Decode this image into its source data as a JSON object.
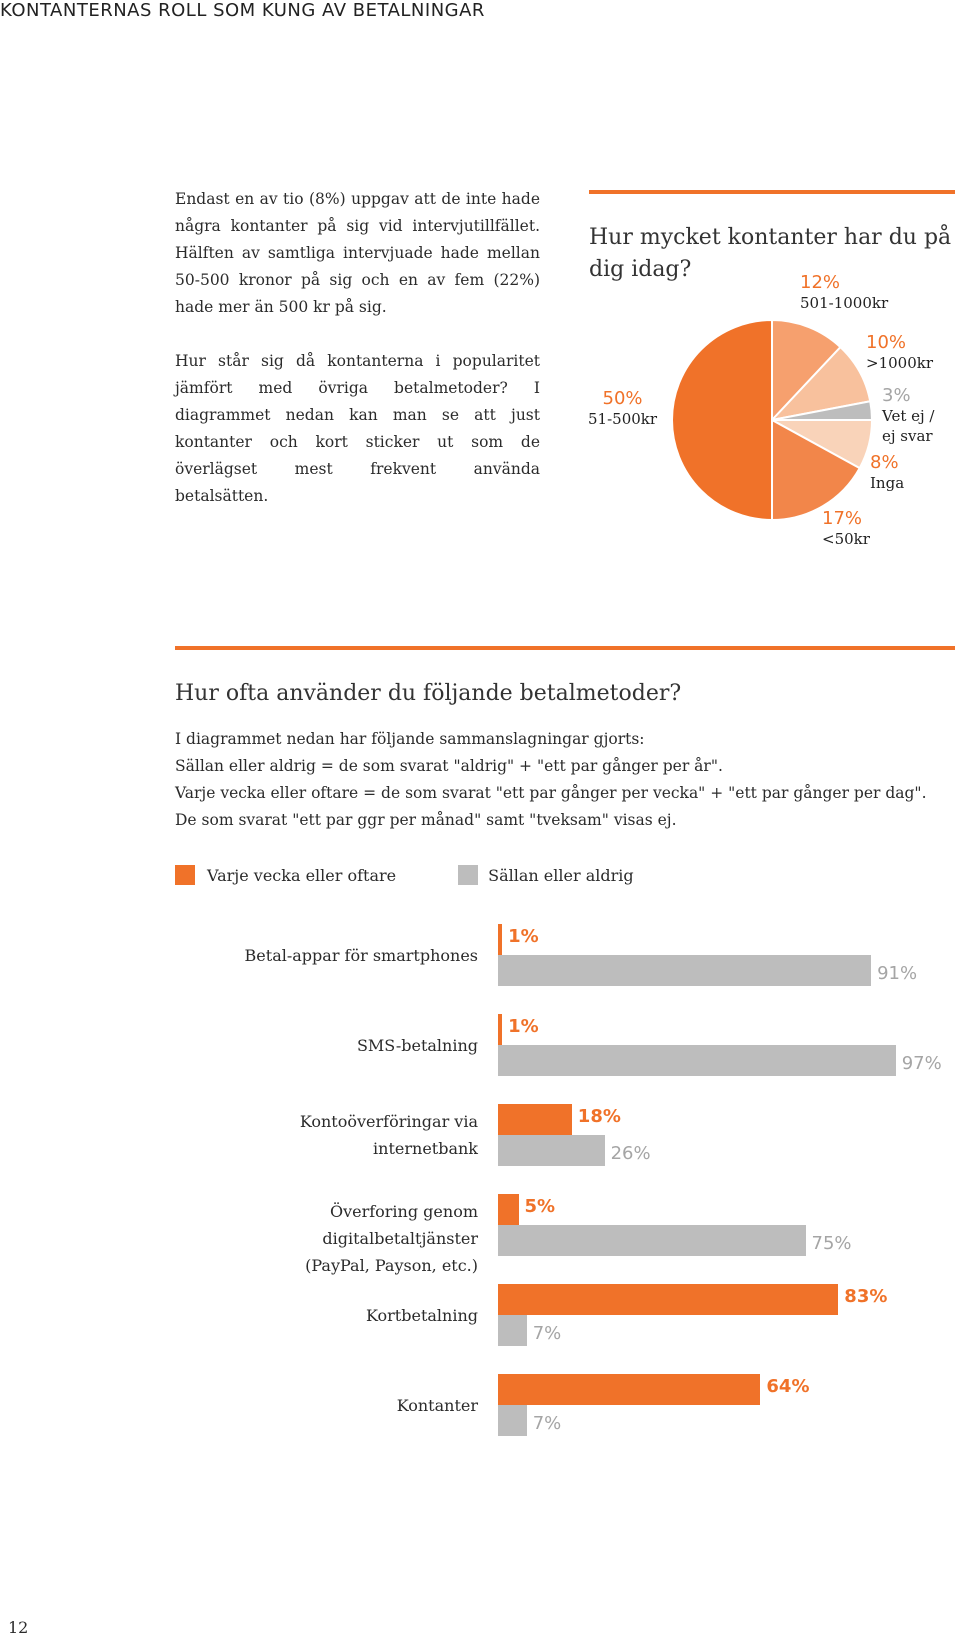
{
  "header": {
    "title": "KONTANTERNAS ROLL SOM KUNG AV BETALNINGAR"
  },
  "intro": {
    "p1": "Endast en av tio (8%) uppgav att de inte hade några kontanter på sig vid intervjutillfället. Hälften av samtliga intervjuade hade mellan 50-500 kronor på sig och en av fem (22%) hade mer än 500 kr på sig.",
    "p2": "Hur står sig då kontanterna i popularitet jämfört med övriga betalmetoder? I diagrammet nedan kan man se att just kontanter och kort sticker ut som de överlägset mest frekvent använda betalsätten."
  },
  "pie_section": {
    "title_line1": "Hur mycket kontanter har du på",
    "title_line2": "dig idag?"
  },
  "bar_section": {
    "title": "Hur ofta använder du följande betalmetoder?",
    "desc1": "I diagrammet nedan har följande sammanslagningar gjorts:",
    "desc2": "Sällan eller aldrig = de som svarat \"aldrig\" + \"ett par gånger per år\".",
    "desc3": "Varje vecka eller oftare = de som svarat \"ett par gånger per vecka\"  +  \"ett par gånger per dag\".",
    "desc4": "De som svarat \"ett par ggr per månad\" samt \"tveksam\" visas ej."
  },
  "colors": {
    "orange": "#f07229",
    "gray": "#bdbdbd"
  },
  "chart_data": [
    {
      "type": "pie",
      "title": "Hur mycket kontanter har du på dig idag?",
      "slices": [
        {
          "value": 12,
          "pct_label": "12%",
          "label": "501-1000kr",
          "color": "#f6a06e"
        },
        {
          "value": 10,
          "pct_label": "10%",
          "label": ">1000kr",
          "color": "#f8c19d"
        },
        {
          "value": 3,
          "pct_label": "3%",
          "label": "Vet ej / ej svar",
          "label_lines": [
            "Vet ej /",
            "ej svar"
          ],
          "color": "#bdbdbd"
        },
        {
          "value": 8,
          "pct_label": "8%",
          "label": "Inga",
          "color": "#f9d3b9"
        },
        {
          "value": 17,
          "pct_label": "17%",
          "label": "<50kr",
          "color": "#f2864a"
        },
        {
          "value": 50,
          "pct_label": "50%",
          "label": "51-500kr",
          "color": "#f07229"
        }
      ]
    },
    {
      "type": "bar",
      "orientation": "horizontal",
      "title": "Hur ofta använder du följande betalmetoder?",
      "xlim": [
        0,
        100
      ],
      "categories": [
        "Betal-appar för smartphones",
        "SMS-betalning",
        "Kontoöverföringar via internetbank",
        "Överforing genom digitalbetaltjänster (PayPal, Payson, etc.)",
        "Kortbetalning",
        "Kontanter"
      ],
      "category_lines": [
        [
          "Betal-appar för smartphones"
        ],
        [
          "SMS-betalning"
        ],
        [
          "Kontoöverföringar via",
          "internetbank"
        ],
        [
          "Överforing genom digitalbetaltjänster",
          "(PayPal, Payson, etc.)"
        ],
        [
          "Kortbetalning"
        ],
        [
          "Kontanter"
        ]
      ],
      "series": [
        {
          "name": "Varje vecka eller oftare",
          "color": "#f07229",
          "values": [
            1,
            1,
            18,
            5,
            83,
            64
          ],
          "labels": [
            "1%",
            "1%",
            "18%",
            "5%",
            "83%",
            "64%"
          ]
        },
        {
          "name": "Sällan eller aldrig",
          "color": "#bdbdbd",
          "values": [
            91,
            97,
            26,
            75,
            7,
            7
          ],
          "labels": [
            "91%",
            "97%",
            "26%",
            "75%",
            "7%",
            "7%"
          ]
        }
      ],
      "legend": "top-left"
    }
  ],
  "footer": {
    "page_number": "12"
  }
}
